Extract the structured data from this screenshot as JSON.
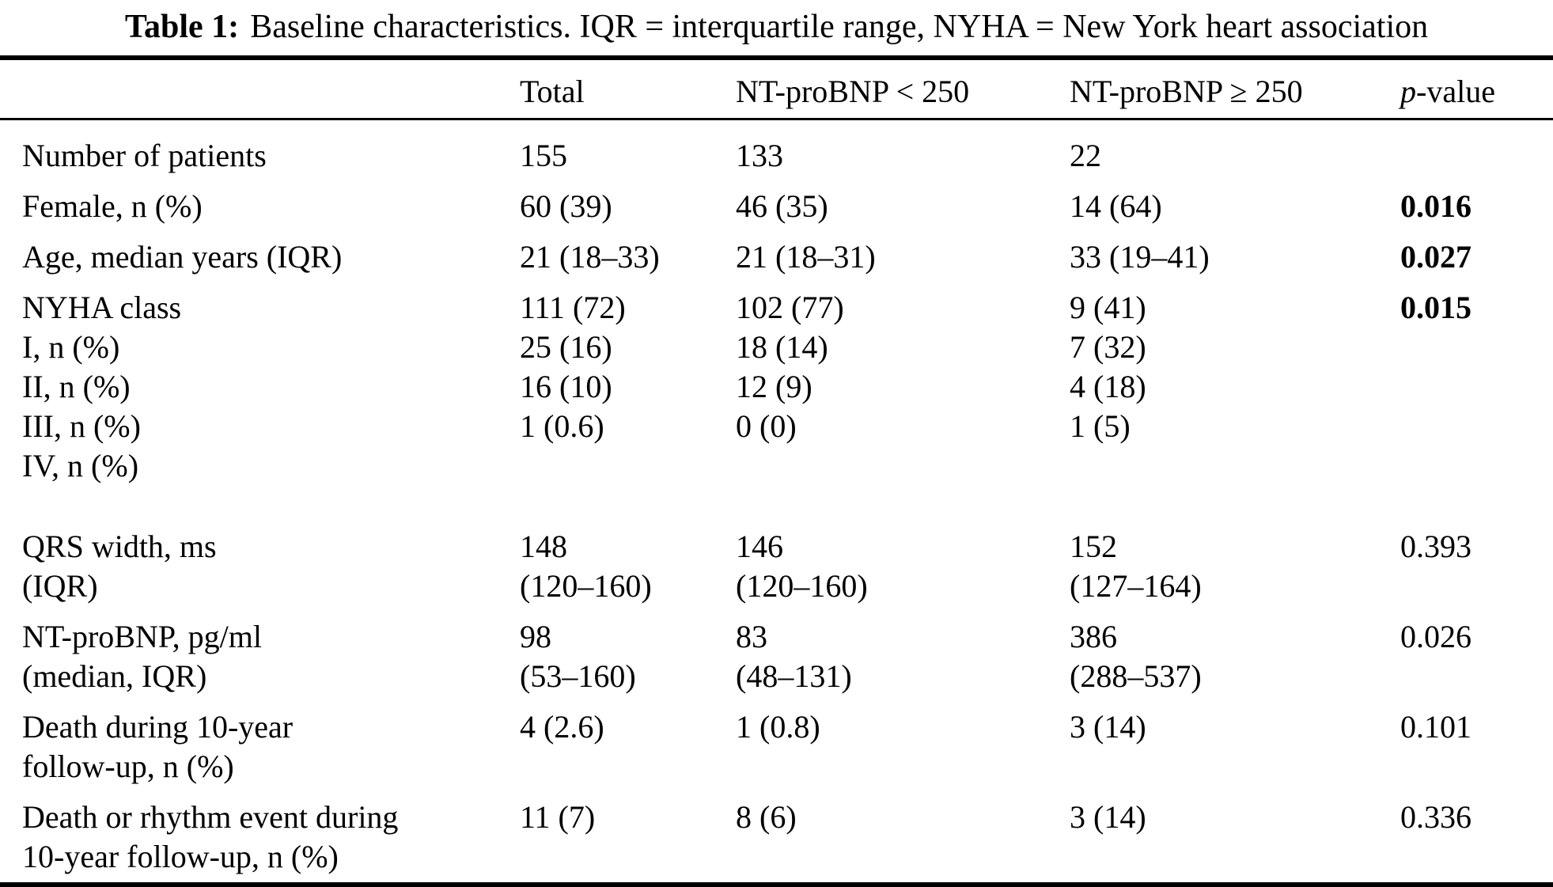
{
  "caption": {
    "label": "Table 1:",
    "text": "Baseline characteristics. IQR = interquartile range, NYHA = New York heart association"
  },
  "columns": {
    "empty": "",
    "total": "Total",
    "probnp_low": "NT-proBNP < 250",
    "probnp_high": "NT-proBNP ≥ 250",
    "p_italic": "p",
    "p_rest": "-value"
  },
  "rows": [
    {
      "label": [
        "Number of patients"
      ],
      "total": [
        "155"
      ],
      "probnp_low": [
        "133"
      ],
      "probnp_high": [
        "22"
      ],
      "p": "",
      "p_bold": false,
      "gap_above": false
    },
    {
      "label": [
        "Female, n (%)"
      ],
      "total": [
        "60 (39)"
      ],
      "probnp_low": [
        "46 (35)"
      ],
      "probnp_high": [
        "14 (64)"
      ],
      "p": "0.016",
      "p_bold": true,
      "gap_above": false
    },
    {
      "label": [
        "Age, median years (IQR)"
      ],
      "total": [
        "21 (18–33)"
      ],
      "probnp_low": [
        "21 (18–31)"
      ],
      "probnp_high": [
        "33 (19–41)"
      ],
      "p": "0.027",
      "p_bold": true,
      "gap_above": false
    },
    {
      "label": [
        "NYHA class",
        "I, n (%)",
        "II, n (%)",
        "III, n (%)",
        "IV, n (%)"
      ],
      "total": [
        "111 (72)",
        "25 (16)",
        "16 (10)",
        "1 (0.6)"
      ],
      "probnp_low": [
        "102 (77)",
        "18 (14)",
        "12 (9)",
        "0 (0)"
      ],
      "probnp_high": [
        "9 (41)",
        "7 (32)",
        "4 (18)",
        "1 (5)"
      ],
      "p": "0.015",
      "p_bold": true,
      "gap_above": false
    },
    {
      "label": [
        "QRS width, ms",
        "(IQR)"
      ],
      "total": [
        "148",
        "(120–160)"
      ],
      "probnp_low": [
        "146",
        "(120–160)"
      ],
      "probnp_high": [
        "152",
        "(127–164)"
      ],
      "p": "0.393",
      "p_bold": false,
      "gap_above": true
    },
    {
      "label": [
        "NT-proBNP, pg/ml",
        "(median, IQR)"
      ],
      "total": [
        "98",
        "(53–160)"
      ],
      "probnp_low": [
        "83",
        "(48–131)"
      ],
      "probnp_high": [
        "386",
        "(288–537)"
      ],
      "p": "0.026",
      "p_bold": false,
      "gap_above": false
    },
    {
      "label": [
        "Death during 10-year",
        "follow-up, n (%)"
      ],
      "total": [
        "4 (2.6)"
      ],
      "probnp_low": [
        "1 (0.8)"
      ],
      "probnp_high": [
        "3 (14)"
      ],
      "p": "0.101",
      "p_bold": false,
      "gap_above": false
    },
    {
      "label": [
        "Death or rhythm event during",
        "10-year follow-up, n (%)"
      ],
      "total": [
        "11 (7)"
      ],
      "probnp_low": [
        "8 (6)"
      ],
      "probnp_high": [
        "3 (14)"
      ],
      "p": "0.336",
      "p_bold": false,
      "gap_above": false
    }
  ]
}
